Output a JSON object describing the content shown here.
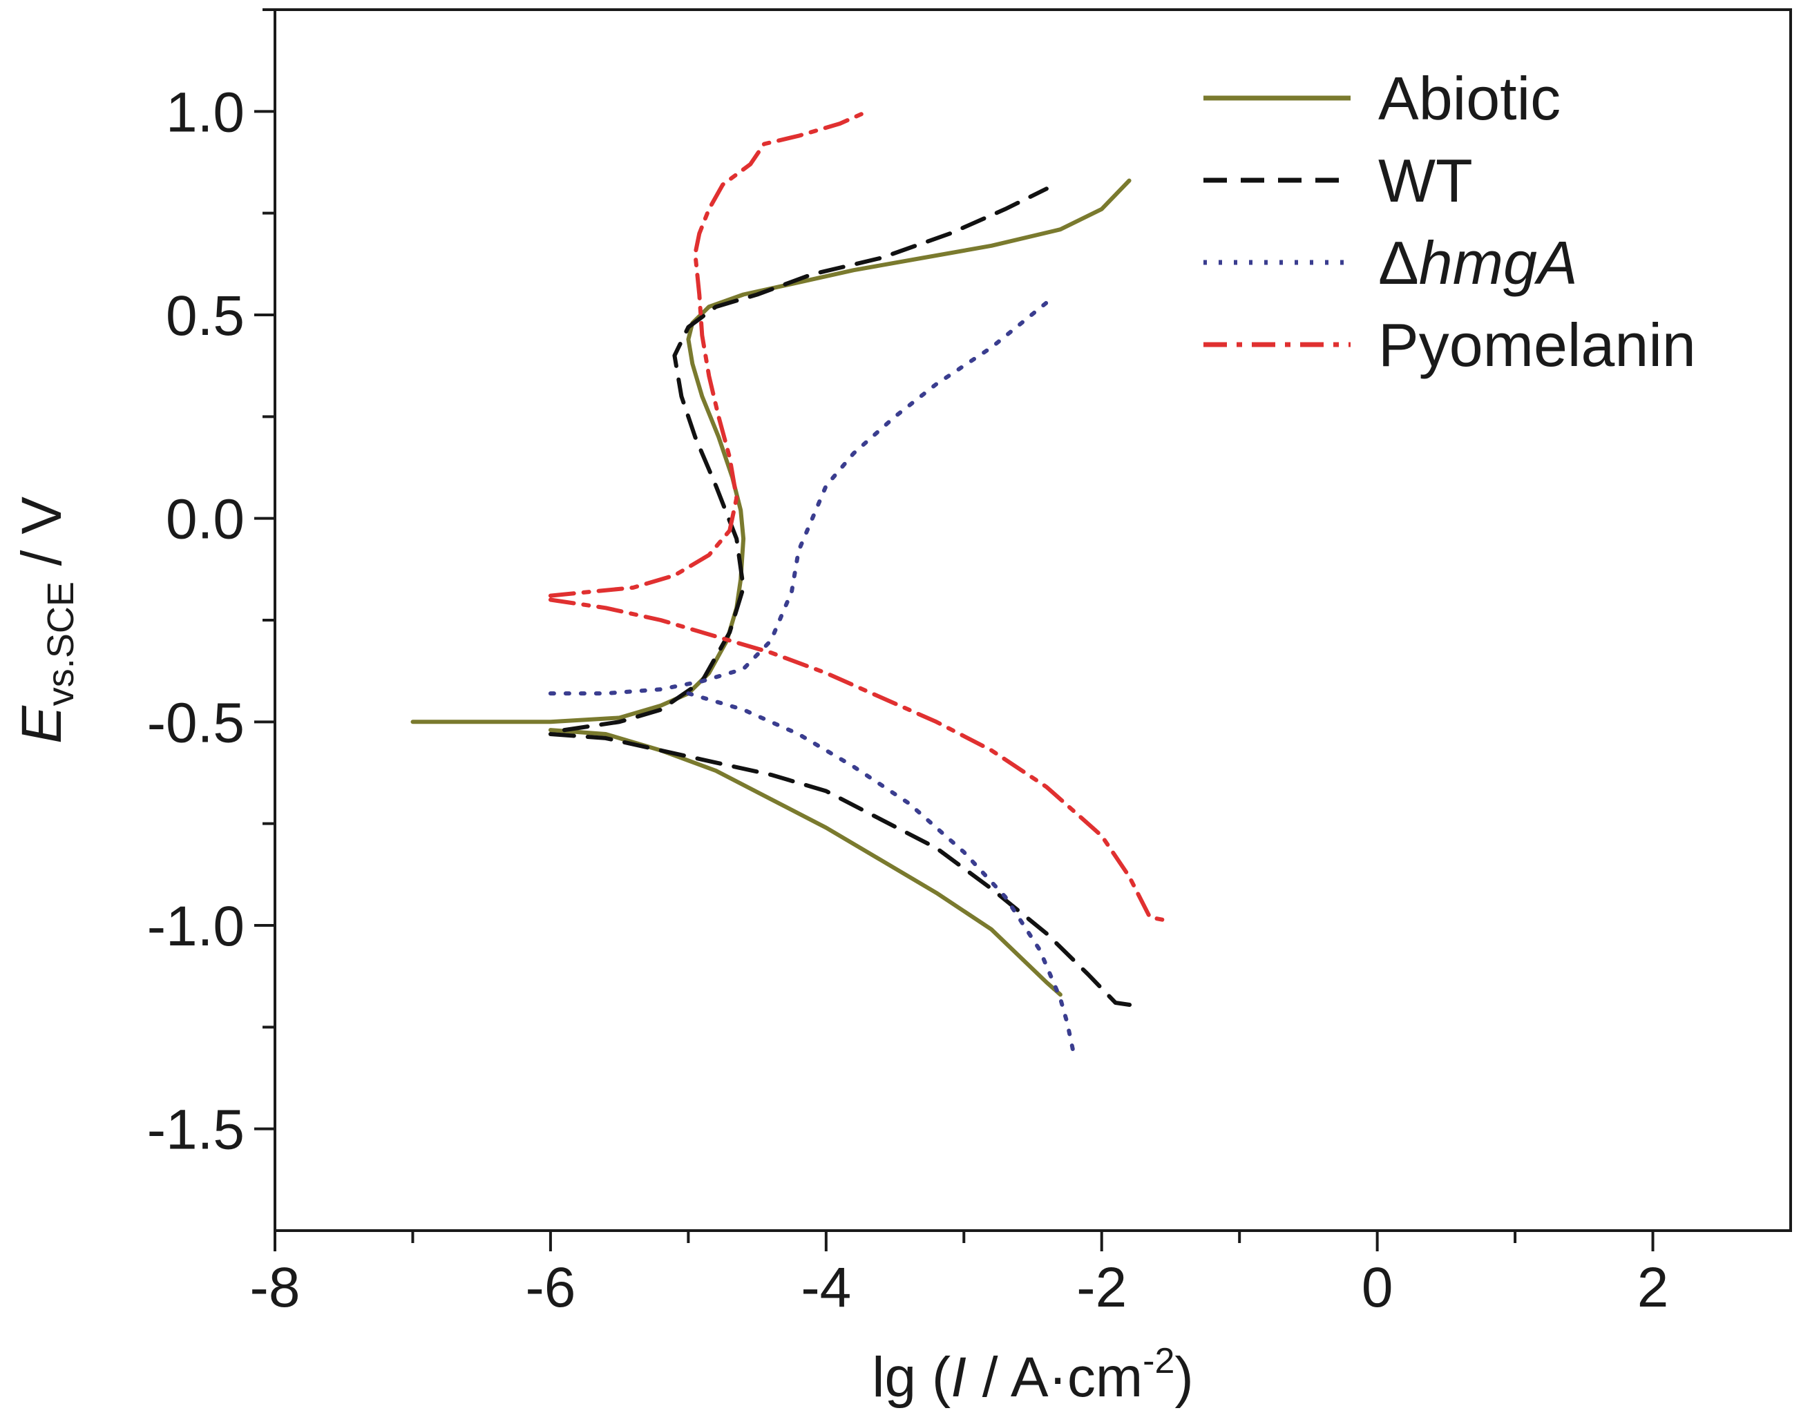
{
  "chart_data": {
    "type": "line",
    "title": "",
    "xlabel": {
      "prefix": "lg (",
      "italic": "I",
      "middle": " / A·cm",
      "superscript": "-2",
      "suffix": ")"
    },
    "ylabel": {
      "italic": "E",
      "subscript": "vs.SCE",
      "suffix": " / V"
    },
    "xlim": [
      -8,
      3
    ],
    "ylim": [
      -1.75,
      1.25
    ],
    "x_ticks": [
      "-8",
      "-6",
      "-4",
      "-2",
      "0",
      "2"
    ],
    "x_tick_values": [
      -8,
      -6,
      -4,
      -2,
      0,
      2
    ],
    "x_minor_tick_values": [
      -7,
      -5,
      -3,
      -1,
      1
    ],
    "y_ticks": [
      "1.0",
      "0.5",
      "0.0",
      "-0.5",
      "-1.0",
      "-1.5"
    ],
    "y_tick_values": [
      1.0,
      0.5,
      0.0,
      -0.5,
      -1.0,
      -1.5
    ],
    "y_minor_tick_values": [
      1.25,
      0.75,
      0.25,
      -0.25,
      -0.75,
      -1.25
    ],
    "grid": false,
    "legend_position": "top-right",
    "series": [
      {
        "name": "Abiotic",
        "name_italic": false,
        "color": "#7a7a2e",
        "dash": "solid",
        "points": [
          [
            -7.0,
            -0.5
          ],
          [
            -6.0,
            -0.5
          ],
          [
            -5.5,
            -0.49
          ],
          [
            -5.2,
            -0.46
          ],
          [
            -5.0,
            -0.43
          ],
          [
            -4.85,
            -0.38
          ],
          [
            -4.72,
            -0.3
          ],
          [
            -4.65,
            -0.22
          ],
          [
            -4.62,
            -0.15
          ],
          [
            -4.6,
            -0.05
          ],
          [
            -4.62,
            0.02
          ],
          [
            -4.68,
            0.1
          ],
          [
            -4.78,
            0.2
          ],
          [
            -4.9,
            0.3
          ],
          [
            -4.97,
            0.38
          ],
          [
            -5.0,
            0.44
          ],
          [
            -4.97,
            0.48
          ],
          [
            -4.85,
            0.52
          ],
          [
            -4.6,
            0.55
          ],
          [
            -4.2,
            0.58
          ],
          [
            -3.8,
            0.61
          ],
          [
            -3.3,
            0.64
          ],
          [
            -2.8,
            0.67
          ],
          [
            -2.3,
            0.71
          ],
          [
            -2.0,
            0.76
          ],
          [
            -1.8,
            0.83
          ]
        ],
        "points_cathodic": [
          [
            -6.0,
            -0.52
          ],
          [
            -5.6,
            -0.53
          ],
          [
            -5.2,
            -0.57
          ],
          [
            -4.8,
            -0.62
          ],
          [
            -4.4,
            -0.69
          ],
          [
            -4.0,
            -0.76
          ],
          [
            -3.6,
            -0.84
          ],
          [
            -3.2,
            -0.92
          ],
          [
            -2.8,
            -1.01
          ],
          [
            -2.4,
            -1.14
          ],
          [
            -2.3,
            -1.17
          ]
        ]
      },
      {
        "name": "WT",
        "name_italic": false,
        "color": "#111111",
        "dash": "dashed",
        "points": [
          [
            -5.9,
            -0.52
          ],
          [
            -5.5,
            -0.5
          ],
          [
            -5.2,
            -0.47
          ],
          [
            -4.9,
            -0.4
          ],
          [
            -4.7,
            -0.28
          ],
          [
            -4.6,
            -0.17
          ],
          [
            -4.65,
            -0.05
          ],
          [
            -4.8,
            0.08
          ],
          [
            -4.95,
            0.2
          ],
          [
            -5.05,
            0.3
          ],
          [
            -5.1,
            0.4
          ],
          [
            -5.0,
            0.47
          ],
          [
            -4.8,
            0.52
          ],
          [
            -4.5,
            0.55
          ],
          [
            -4.1,
            0.6
          ],
          [
            -3.6,
            0.64
          ],
          [
            -3.1,
            0.7
          ],
          [
            -2.7,
            0.76
          ],
          [
            -2.4,
            0.81
          ]
        ],
        "points_cathodic": [
          [
            -6.0,
            -0.53
          ],
          [
            -5.6,
            -0.54
          ],
          [
            -5.2,
            -0.57
          ],
          [
            -4.8,
            -0.6
          ],
          [
            -4.4,
            -0.63
          ],
          [
            -4.0,
            -0.67
          ],
          [
            -3.6,
            -0.74
          ],
          [
            -3.2,
            -0.81
          ],
          [
            -2.8,
            -0.91
          ],
          [
            -2.4,
            -1.02
          ],
          [
            -2.1,
            -1.12
          ],
          [
            -1.9,
            -1.19
          ],
          [
            -1.7,
            -1.2
          ]
        ]
      },
      {
        "name": "ΔhmgA",
        "name_italic": true,
        "color": "#3a3d8f",
        "dash": "dotted",
        "points": [
          [
            -6.0,
            -0.43
          ],
          [
            -5.6,
            -0.43
          ],
          [
            -5.2,
            -0.42
          ],
          [
            -4.9,
            -0.4
          ],
          [
            -4.6,
            -0.37
          ],
          [
            -4.4,
            -0.3
          ],
          [
            -4.25,
            -0.18
          ],
          [
            -4.2,
            -0.08
          ],
          [
            -4.1,
            0.0
          ],
          [
            -4.0,
            0.08
          ],
          [
            -3.8,
            0.16
          ],
          [
            -3.5,
            0.25
          ],
          [
            -3.2,
            0.33
          ],
          [
            -2.8,
            0.42
          ],
          [
            -2.4,
            0.53
          ]
        ],
        "points_cathodic": [
          [
            -5.0,
            -0.43
          ],
          [
            -4.6,
            -0.47
          ],
          [
            -4.2,
            -0.53
          ],
          [
            -3.8,
            -0.61
          ],
          [
            -3.4,
            -0.7
          ],
          [
            -3.0,
            -0.82
          ],
          [
            -2.7,
            -0.93
          ],
          [
            -2.45,
            -1.06
          ],
          [
            -2.3,
            -1.18
          ],
          [
            -2.25,
            -1.24
          ],
          [
            -2.2,
            -1.32
          ]
        ]
      },
      {
        "name": "Pyomelanin",
        "name_italic": false,
        "color": "#e03030",
        "dash": "dash-dot",
        "points": [
          [
            -6.0,
            -0.19
          ],
          [
            -5.7,
            -0.18
          ],
          [
            -5.4,
            -0.17
          ],
          [
            -5.1,
            -0.14
          ],
          [
            -4.85,
            -0.09
          ],
          [
            -4.7,
            -0.03
          ],
          [
            -4.65,
            0.05
          ],
          [
            -4.7,
            0.15
          ],
          [
            -4.78,
            0.25
          ],
          [
            -4.85,
            0.35
          ],
          [
            -4.9,
            0.45
          ],
          [
            -4.92,
            0.55
          ],
          [
            -4.95,
            0.65
          ],
          [
            -4.92,
            0.7
          ],
          [
            -4.85,
            0.76
          ],
          [
            -4.75,
            0.82
          ],
          [
            -4.55,
            0.87
          ],
          [
            -4.45,
            0.92
          ],
          [
            -4.2,
            0.94
          ],
          [
            -3.9,
            0.97
          ],
          [
            -3.7,
            1.0
          ]
        ],
        "points_cathodic": [
          [
            -6.0,
            -0.2
          ],
          [
            -5.6,
            -0.22
          ],
          [
            -5.2,
            -0.25
          ],
          [
            -4.8,
            -0.29
          ],
          [
            -4.4,
            -0.33
          ],
          [
            -4.0,
            -0.38
          ],
          [
            -3.6,
            -0.44
          ],
          [
            -3.2,
            -0.5
          ],
          [
            -2.8,
            -0.57
          ],
          [
            -2.4,
            -0.66
          ],
          [
            -2.0,
            -0.78
          ],
          [
            -1.8,
            -0.88
          ],
          [
            -1.65,
            -0.98
          ],
          [
            -1.5,
            -0.99
          ]
        ]
      }
    ]
  }
}
